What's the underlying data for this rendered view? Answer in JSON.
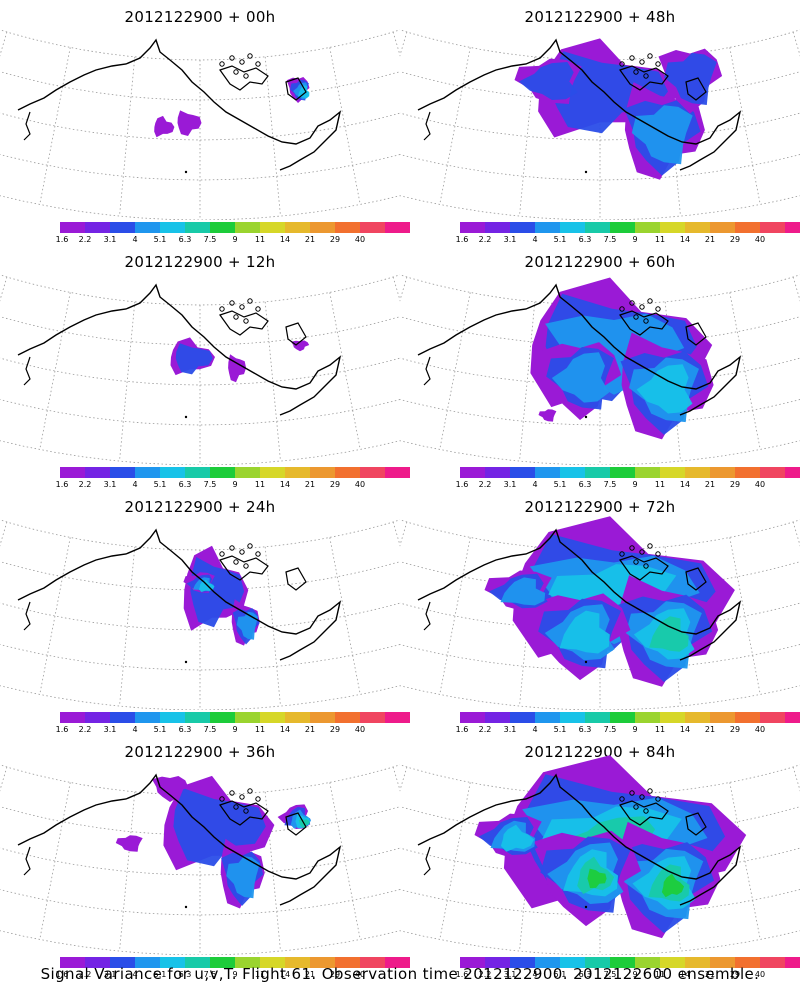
{
  "colorbar": {
    "colors": [
      "#9a1ad6",
      "#7424e4",
      "#2a4de8",
      "#1f96ee",
      "#17c2e8",
      "#18caa8",
      "#1dcc3a",
      "#9ad42f",
      "#d6d728",
      "#e6b92c",
      "#ec9830",
      "#f2702f",
      "#f04560",
      "#ee1b8a"
    ],
    "labels": [
      "1.6",
      "2.2",
      "3.1",
      "4",
      "5.1",
      "6.3",
      "7.5",
      "9",
      "11",
      "14",
      "21",
      "29",
      "40"
    ]
  },
  "panels": [
    {
      "title": "2012122900  +  00h",
      "intensity": 0
    },
    {
      "title": "2012122900  +  12h",
      "intensity": 1
    },
    {
      "title": "2012122900  +  24h",
      "intensity": 2
    },
    {
      "title": "2012122900  +  36h",
      "intensity": 3
    },
    {
      "title": "2012122900  +  48h",
      "intensity": 4
    },
    {
      "title": "2012122900  +  60h",
      "intensity": 5
    },
    {
      "title": "2012122900  +  72h",
      "intensity": 6
    },
    {
      "title": "2012122900  +  84h",
      "intensity": 7
    }
  ],
  "footer": "Signal Variance for u,v,T. Flight 61. Observation time 2012122900. 2012122600 ensemble."
}
